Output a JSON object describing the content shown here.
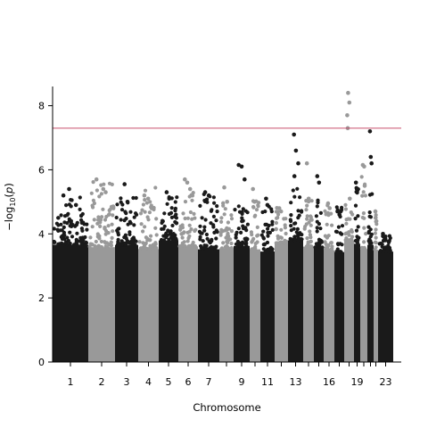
{
  "chart_data": {
    "type": "scatter",
    "subtype": "manhattan",
    "xlabel": "Chromosome",
    "ylabel": "-log10(p)",
    "ylim": [
      0,
      8.6
    ],
    "yticks": [
      0,
      2,
      4,
      6,
      8
    ],
    "grid": false,
    "legend": "none",
    "significance_line": {
      "value": 7.3,
      "color": "#c8506e"
    },
    "colors": {
      "odd": "#1a1a1a",
      "even": "#999999"
    },
    "xtick_labels": [
      "1",
      "2",
      "3",
      "4",
      "5",
      "6",
      "7",
      "9",
      "11",
      "13",
      "16",
      "19",
      "23"
    ],
    "chromosomes": [
      {
        "chrom": "1",
        "max": 5.4,
        "tail": 4.8,
        "peaks": [
          5.2,
          5.4,
          4.9
        ]
      },
      {
        "chrom": "2",
        "max": 5.7,
        "tail": 5.3,
        "peaks": [
          5.7,
          5.4,
          5.3
        ]
      },
      {
        "chrom": "3",
        "max": 5.55,
        "tail": 4.9,
        "peaks": [
          5.55,
          5.0
        ]
      },
      {
        "chrom": "4",
        "max": 5.2,
        "tail": 5.1,
        "peaks": [
          5.2,
          5.1,
          4.8
        ]
      },
      {
        "chrom": "5",
        "max": 5.3,
        "tail": 4.9,
        "peaks": [
          5.3,
          5.1
        ]
      },
      {
        "chrom": "6",
        "max": 5.7,
        "tail": 5.3,
        "peaks": [
          5.7,
          5.6,
          5.4
        ]
      },
      {
        "chrom": "7",
        "max": 5.3,
        "tail": 4.9,
        "peaks": [
          5.3,
          5.2
        ]
      },
      {
        "chrom": "8",
        "max": 5.45,
        "tail": 4.7,
        "peaks": [
          5.45,
          5.0
        ]
      },
      {
        "chrom": "9",
        "max": 6.15,
        "tail": 4.6,
        "peaks": [
          6.15,
          6.1,
          5.7
        ]
      },
      {
        "chrom": "10",
        "max": 5.4,
        "tail": 4.8,
        "peaks": [
          5.4,
          5.0
        ]
      },
      {
        "chrom": "11",
        "max": 5.1,
        "tail": 4.6,
        "peaks": [
          5.1,
          4.9
        ]
      },
      {
        "chrom": "12",
        "max": 4.8,
        "tail": 4.5,
        "peaks": [
          4.8,
          4.7
        ]
      },
      {
        "chrom": "13",
        "max": 7.1,
        "tail": 5.2,
        "peaks": [
          7.1,
          6.6,
          6.2,
          5.8
        ]
      },
      {
        "chrom": "14",
        "max": 6.2,
        "tail": 4.7,
        "peaks": [
          6.2,
          5.1
        ]
      },
      {
        "chrom": "15",
        "max": 5.8,
        "tail": 5.0,
        "peaks": [
          5.8,
          5.6
        ]
      },
      {
        "chrom": "16",
        "max": 4.95,
        "tail": 4.6,
        "peaks": [
          4.95,
          4.8
        ]
      },
      {
        "chrom": "17",
        "max": 4.7,
        "tail": 4.5,
        "peaks": [
          4.7,
          4.6
        ]
      },
      {
        "chrom": "18",
        "max": 8.4,
        "tail": 4.8,
        "peaks": [
          8.4,
          8.1,
          7.7,
          7.3,
          5.1
        ]
      },
      {
        "chrom": "19",
        "max": 5.6,
        "tail": 5.2,
        "peaks": [
          5.6,
          5.4
        ]
      },
      {
        "chrom": "20",
        "max": 6.15,
        "tail": 5.5,
        "peaks": [
          6.15,
          6.1,
          5.5
        ]
      },
      {
        "chrom": "21",
        "max": 7.2,
        "tail": 5.1,
        "peaks": [
          7.2,
          6.4,
          6.2
        ]
      },
      {
        "chrom": "22",
        "max": 4.7,
        "tail": 4.4,
        "peaks": [
          4.7,
          4.5
        ]
      },
      {
        "chrom": "23",
        "max": 4.0,
        "tail": 3.6,
        "peaks": [
          4.0,
          3.8
        ]
      }
    ]
  }
}
